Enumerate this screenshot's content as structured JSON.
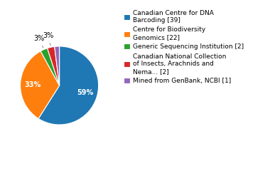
{
  "chart_data": {
    "type": "pie",
    "categories": [
      "Canadian Centre for DNA\nBarcoding [39]",
      "Centre for Biodiversity\nGenomics [22]",
      "Generic Sequencing Institution [2]",
      "Canadian National Collection\nof Insects, Arachnids and\nNema... [2]",
      "Mined from GenBank, NCBI [1]"
    ],
    "values": [
      59,
      33,
      3,
      3,
      2
    ],
    "value_labels": [
      "59%",
      "33%",
      "3%",
      "3%",
      null
    ],
    "data_labels": true,
    "legend": "upper left"
  }
}
